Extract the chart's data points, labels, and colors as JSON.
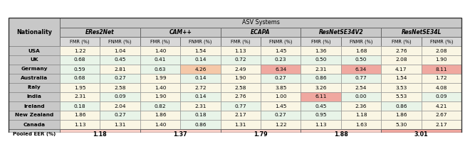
{
  "nationalities": [
    "USA",
    "UK",
    "Germany",
    "Australia",
    "Italy",
    "India",
    "Ireland",
    "New Zealand",
    "Canada"
  ],
  "systems": [
    "ERes2Net",
    "CAM++",
    "ECAPA",
    "ResNetSE34V2",
    "ResNetSE34L"
  ],
  "pooled_eer": [
    1.18,
    1.37,
    1.79,
    1.88,
    3.01
  ],
  "data": {
    "ERes2Net": {
      "FMR": [
        1.22,
        0.68,
        0.59,
        0.68,
        1.95,
        2.31,
        0.18,
        1.86,
        1.13
      ],
      "FNMR": [
        1.04,
        0.45,
        2.81,
        0.27,
        2.58,
        0.09,
        2.04,
        0.27,
        1.31
      ]
    },
    "CAM++": {
      "FMR": [
        1.4,
        0.41,
        0.63,
        1.99,
        1.4,
        1.9,
        0.82,
        1.86,
        1.4
      ],
      "FNMR": [
        1.54,
        0.14,
        4.26,
        0.14,
        2.72,
        0.14,
        2.31,
        0.18,
        0.86
      ]
    },
    "ECAPA": {
      "FMR": [
        1.13,
        0.72,
        2.49,
        1.9,
        2.58,
        2.76,
        0.77,
        2.17,
        1.31
      ],
      "FNMR": [
        1.45,
        0.23,
        6.34,
        0.27,
        3.85,
        1.0,
        1.45,
        0.27,
        1.22
      ]
    },
    "ResNetSE34V2": {
      "FMR": [
        1.36,
        0.5,
        2.31,
        0.86,
        3.26,
        6.11,
        0.45,
        0.95,
        1.13
      ],
      "FNMR": [
        1.68,
        0.5,
        6.34,
        0.77,
        2.54,
        0.0,
        2.36,
        1.18,
        1.63
      ]
    },
    "ResNetSE34L": {
      "FMR": [
        2.76,
        2.08,
        4.17,
        1.54,
        3.53,
        5.53,
        0.86,
        1.86,
        5.3
      ],
      "FNMR": [
        2.08,
        1.9,
        8.11,
        1.72,
        4.08,
        0.09,
        4.21,
        2.67,
        2.17
      ]
    }
  },
  "cell_colors": {
    "ERes2Net_FMR": [
      "#faf6e4",
      "#e8f4e8",
      "#e8f4e8",
      "#e8f4e8",
      "#faf6e4",
      "#faf6e4",
      "#e8f4e8",
      "#faf6e4",
      "#faf6e4"
    ],
    "ERes2Net_FNMR": [
      "#faf6e4",
      "#e8f4e8",
      "#faf6e4",
      "#e8f4e8",
      "#faf6e4",
      "#e8f4e8",
      "#faf6e4",
      "#e8f4e8",
      "#faf6e4"
    ],
    "CAM++_FMR": [
      "#faf6e4",
      "#e8f4e8",
      "#e8f4e8",
      "#faf6e4",
      "#faf6e4",
      "#faf6e4",
      "#e8f4e8",
      "#faf6e4",
      "#faf6e4"
    ],
    "CAM++_FNMR": [
      "#faf6e4",
      "#e8f4e8",
      "#f5c8a8",
      "#e8f4e8",
      "#faf6e4",
      "#e8f4e8",
      "#faf6e4",
      "#e8f4e8",
      "#e8f4e8"
    ],
    "ECAPA_FMR": [
      "#faf6e4",
      "#e8f4e8",
      "#faf6e4",
      "#faf6e4",
      "#faf6e4",
      "#faf6e4",
      "#e8f4e8",
      "#faf6e4",
      "#faf6e4"
    ],
    "ECAPA_FNMR": [
      "#faf6e4",
      "#e8f4e8",
      "#f0a8a0",
      "#e8f4e8",
      "#faf6e4",
      "#faf6e4",
      "#faf6e4",
      "#e8f4e8",
      "#faf6e4"
    ],
    "ResNetSE34V2_FMR": [
      "#faf6e4",
      "#e8f4e8",
      "#faf6e4",
      "#e8f4e8",
      "#faf6e4",
      "#f0a8a0",
      "#e8f4e8",
      "#e8f4e8",
      "#faf6e4"
    ],
    "ResNetSE34V2_FNMR": [
      "#faf6e4",
      "#e8f4e8",
      "#f0a8a0",
      "#e8f4e8",
      "#faf6e4",
      "#e8f4e8",
      "#faf6e4",
      "#faf6e4",
      "#faf6e4"
    ],
    "ResNetSE34L_FMR": [
      "#faf6e4",
      "#faf6e4",
      "#faf6e4",
      "#faf6e4",
      "#faf6e4",
      "#faf6e4",
      "#e8f4e8",
      "#faf6e4",
      "#faf6e4"
    ],
    "ResNetSE34L_FNMR": [
      "#faf6e4",
      "#faf6e4",
      "#f0a8a0",
      "#faf6e4",
      "#faf6e4",
      "#e8f4e8",
      "#faf6e4",
      "#faf6e4",
      "#faf6e4"
    ]
  },
  "header_bg": "#c8c8c8",
  "sys_header_bg": "#c8c8c8",
  "fmr_header_bg": "#d8d8d8",
  "nat_col_bg": "#c8c8c8",
  "pooled_bg": "#d0d0d0",
  "pooled_eer_bg": "#f8d0c8",
  "last_pooled_eer_bg": "#f0a8a0",
  "fig_width": 6.4,
  "fig_height": 1.77
}
